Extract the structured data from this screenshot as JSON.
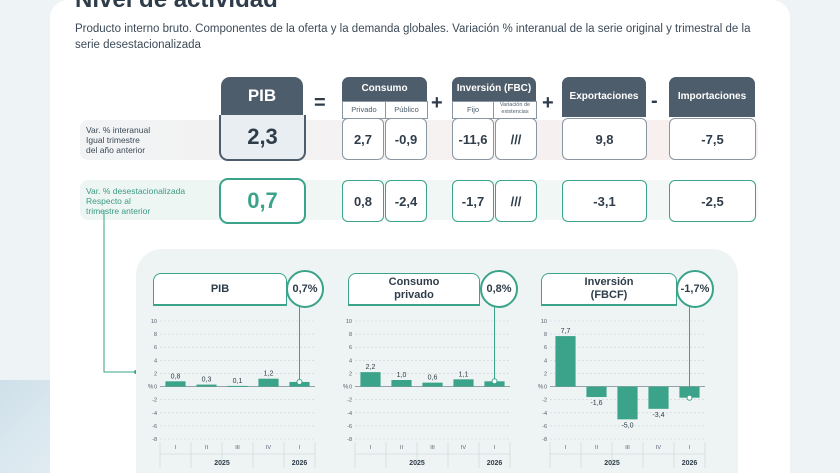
{
  "header": {
    "title": "Nivel de actividad",
    "subtitle": "Producto interno bruto. Componentes de la oferta y la demanda globales. Variación % interanual de la serie original  y trimestral de la serie desestacionalizada"
  },
  "rows": {
    "interanual_label": [
      "Var. % interanual",
      "Igual trimestre",
      "del año anterior"
    ],
    "desest_label": [
      "Var. % desestacionalizada",
      "Respecto al",
      "trimestre anterior"
    ]
  },
  "operators": {
    "equals": "=",
    "plus1": "+",
    "plus2": "+",
    "minus": "-"
  },
  "table": {
    "pib": {
      "label": "PIB",
      "interanual": "2,3",
      "desest": "0,7"
    },
    "consumo": {
      "label": "Consumo",
      "privado": "Privado",
      "publico": "Público",
      "interanual": [
        "2,7",
        "-0,9"
      ],
      "desest": [
        "0,8",
        "-2,4"
      ]
    },
    "inversion": {
      "label": "Inversión (FBC)",
      "fijo": "Fijo",
      "variacion": "Variación de existencias",
      "interanual": [
        "-11,6",
        "///"
      ],
      "desest": [
        "-1,7",
        "///"
      ]
    },
    "exportaciones": {
      "label": "Exportaciones",
      "interanual": "9,8",
      "desest": "-3,1"
    },
    "importaciones": {
      "label": "Importaciones",
      "interanual": "-7,5",
      "desest": "-2,5"
    }
  },
  "colors": {
    "teal": "#3aa389",
    "dark": "#4e5d6b",
    "bar": "#3aa389"
  },
  "chart_data": [
    {
      "type": "bar",
      "title": "PIB",
      "badge": "0,7%",
      "categories": [
        "I",
        "II",
        "III",
        "IV",
        "I"
      ],
      "years": [
        "2025",
        "2026"
      ],
      "values": [
        0.8,
        0.3,
        0.1,
        1.2,
        0.7
      ],
      "labels": [
        "0,8",
        "0,3",
        "0,1",
        "1,2",
        ""
      ],
      "ylim": [
        -8,
        10
      ],
      "yticks": [
        10,
        8,
        6,
        4,
        2,
        0,
        -2,
        -4,
        -6,
        -8
      ],
      "ylabel": "%"
    },
    {
      "type": "bar",
      "title": "Consumo privado",
      "badge": "0,8%",
      "categories": [
        "I",
        "II",
        "III",
        "IV",
        "I"
      ],
      "years": [
        "2025",
        "2026"
      ],
      "values": [
        2.2,
        1.0,
        0.6,
        1.1,
        0.8
      ],
      "labels": [
        "2,2",
        "1,0",
        "0,6",
        "1,1",
        ""
      ],
      "ylim": [
        -8,
        10
      ],
      "yticks": [
        10,
        8,
        6,
        4,
        2,
        0,
        -2,
        -4,
        -6,
        -8
      ],
      "ylabel": "%"
    },
    {
      "type": "bar",
      "title": "Inversión (FBCF)",
      "badge": "-1,7%",
      "categories": [
        "I",
        "II",
        "III",
        "IV",
        "I"
      ],
      "years": [
        "2025",
        "2026"
      ],
      "values": [
        7.7,
        -1.6,
        -5.0,
        -3.4,
        -1.7
      ],
      "labels": [
        "7,7",
        "-1,6",
        "-5,0",
        "-3,4",
        ""
      ],
      "ylim": [
        -8,
        10
      ],
      "yticks": [
        10,
        8,
        6,
        4,
        2,
        0,
        -2,
        -4,
        -6,
        -8
      ],
      "ylabel": "%"
    }
  ]
}
